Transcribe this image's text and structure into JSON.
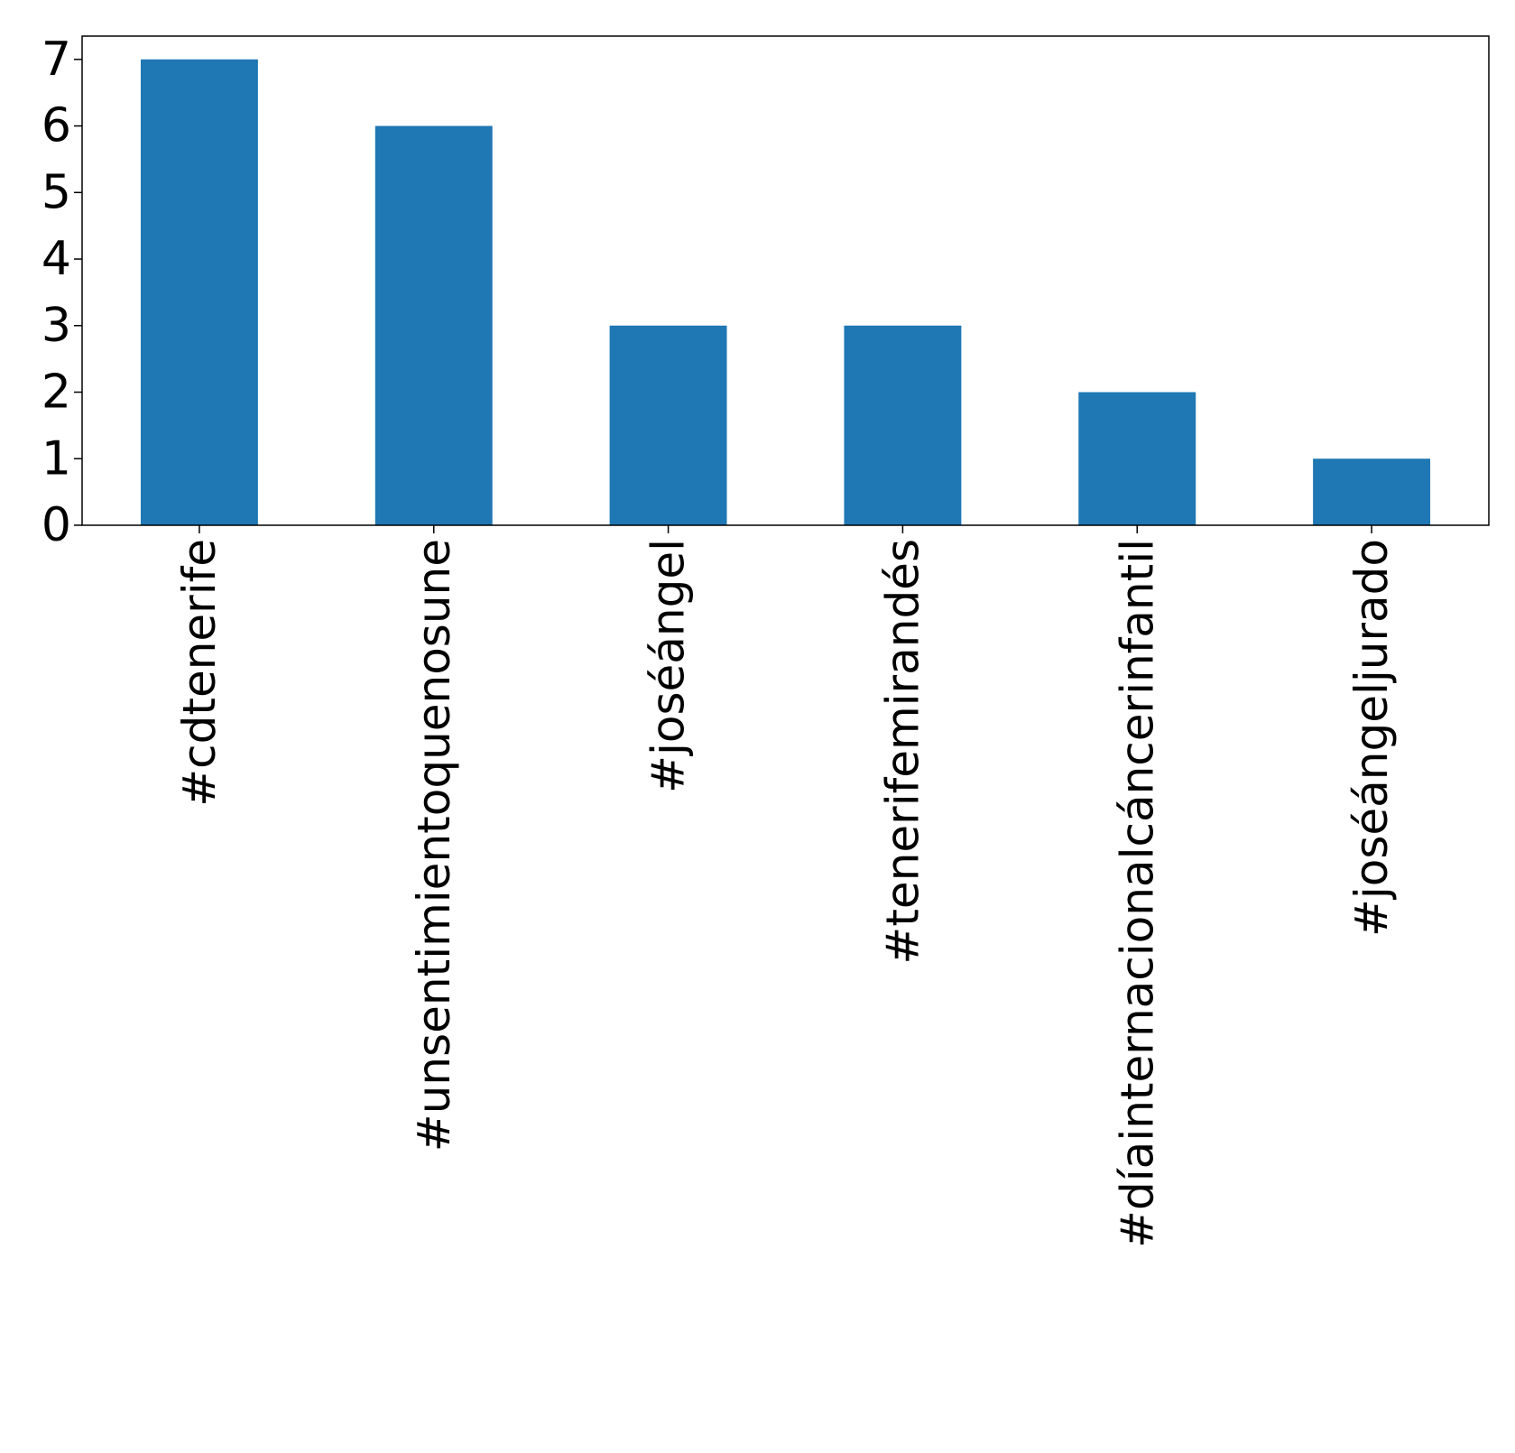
{
  "chart_data": {
    "type": "bar",
    "title": "",
    "xlabel": "",
    "ylabel": "",
    "categories": [
      "#cdtenerife",
      "#unsentimientoquenosune",
      "#joséángel",
      "#tenerifemirandés",
      "#díainternacionalcáncerinfantil",
      "#joséángeljurado"
    ],
    "values": [
      7,
      6,
      3,
      3,
      2,
      1
    ],
    "ylim": [
      0,
      7.35
    ],
    "yticks": [
      "0",
      "1",
      "2",
      "3",
      "4",
      "5",
      "6",
      "7"
    ],
    "grid": false,
    "bar_color": "#1f77b4"
  }
}
